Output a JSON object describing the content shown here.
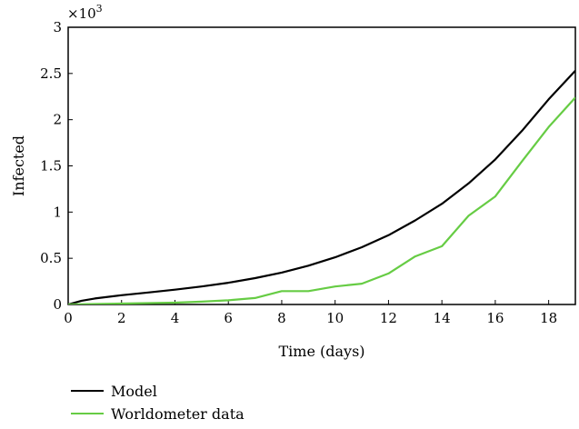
{
  "chart_data": {
    "type": "line",
    "title": "",
    "xlabel": "Time (days)",
    "ylabel": "Infected",
    "y_multiplier_label": "×10",
    "y_multiplier_exponent": "3",
    "xlim": [
      0,
      19
    ],
    "ylim": [
      0,
      3
    ],
    "x_ticks": [
      0,
      2,
      4,
      6,
      8,
      10,
      12,
      14,
      16,
      18
    ],
    "x_tick_labels": [
      "0",
      "2",
      "4",
      "6",
      "8",
      "10",
      "12",
      "14",
      "16",
      "18"
    ],
    "y_ticks": [
      0,
      0.5,
      1,
      1.5,
      2,
      2.5,
      3
    ],
    "y_tick_labels": [
      "0",
      "0.5",
      "1",
      "1.5",
      "2",
      "2.5",
      "3"
    ],
    "grid": false,
    "legend_position": "bottom-left",
    "series": [
      {
        "name": "Model",
        "color": "#000000",
        "x": [
          0,
          0.5,
          1,
          2,
          3,
          4,
          5,
          6,
          7,
          8,
          9,
          10,
          11,
          12,
          13,
          14,
          15,
          16,
          17,
          18,
          19
        ],
        "y": [
          0.0,
          0.04,
          0.065,
          0.1,
          0.13,
          0.16,
          0.195,
          0.235,
          0.285,
          0.345,
          0.42,
          0.51,
          0.62,
          0.75,
          0.91,
          1.09,
          1.31,
          1.57,
          1.88,
          2.22,
          2.53
        ]
      },
      {
        "name": "Worldometer data",
        "color": "#66cc44",
        "x": [
          0,
          1,
          2,
          3,
          4,
          5,
          6,
          7,
          8,
          9,
          10,
          11,
          12,
          13,
          14,
          15,
          16,
          17,
          18,
          19
        ],
        "y": [
          0.0,
          0.005,
          0.01,
          0.015,
          0.02,
          0.03,
          0.045,
          0.07,
          0.145,
          0.145,
          0.195,
          0.225,
          0.335,
          0.52,
          0.63,
          0.96,
          1.17,
          1.55,
          1.92,
          2.24
        ]
      }
    ]
  }
}
